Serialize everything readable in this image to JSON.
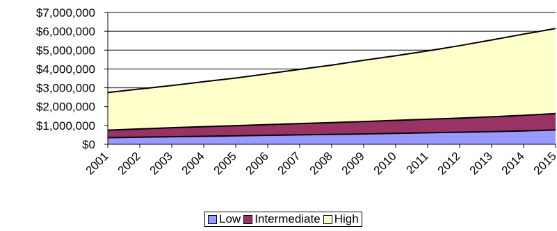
{
  "chart_data": {
    "type": "area",
    "stacked": true,
    "x": [
      "2001",
      "2002",
      "2003",
      "2004",
      "2005",
      "2006",
      "2007",
      "2008",
      "2009",
      "2010",
      "2011",
      "2012",
      "2013",
      "2014",
      "2015"
    ],
    "series": [
      {
        "name": "Low",
        "color": "#9999ff",
        "values": [
          350000,
          375000,
          400000,
          425000,
          450000,
          475000,
          500000,
          525000,
          550000,
          580000,
          610000,
          640000,
          670000,
          710000,
          760000
        ]
      },
      {
        "name": "Intermediate",
        "color": "#993366",
        "values": [
          400000,
          440000,
          480000,
          510000,
          540000,
          570000,
          600000,
          630000,
          660000,
          690000,
          720000,
          750000,
          790000,
          830000,
          870000
        ]
      },
      {
        "name": "High",
        "color": "#ffffcc",
        "values": [
          2000000,
          2120000,
          2240000,
          2390000,
          2530000,
          2700000,
          2880000,
          3050000,
          3250000,
          3430000,
          3630000,
          3850000,
          4080000,
          4310000,
          4520000
        ]
      }
    ],
    "y_ticks": [
      "$0",
      "$1,000,000",
      "$2,000,000",
      "$3,000,000",
      "$4,000,000",
      "$5,000,000",
      "$6,000,000",
      "$7,000,000"
    ],
    "ylim": [
      0,
      7000000
    ],
    "grid": true,
    "legend_position": "bottom"
  }
}
